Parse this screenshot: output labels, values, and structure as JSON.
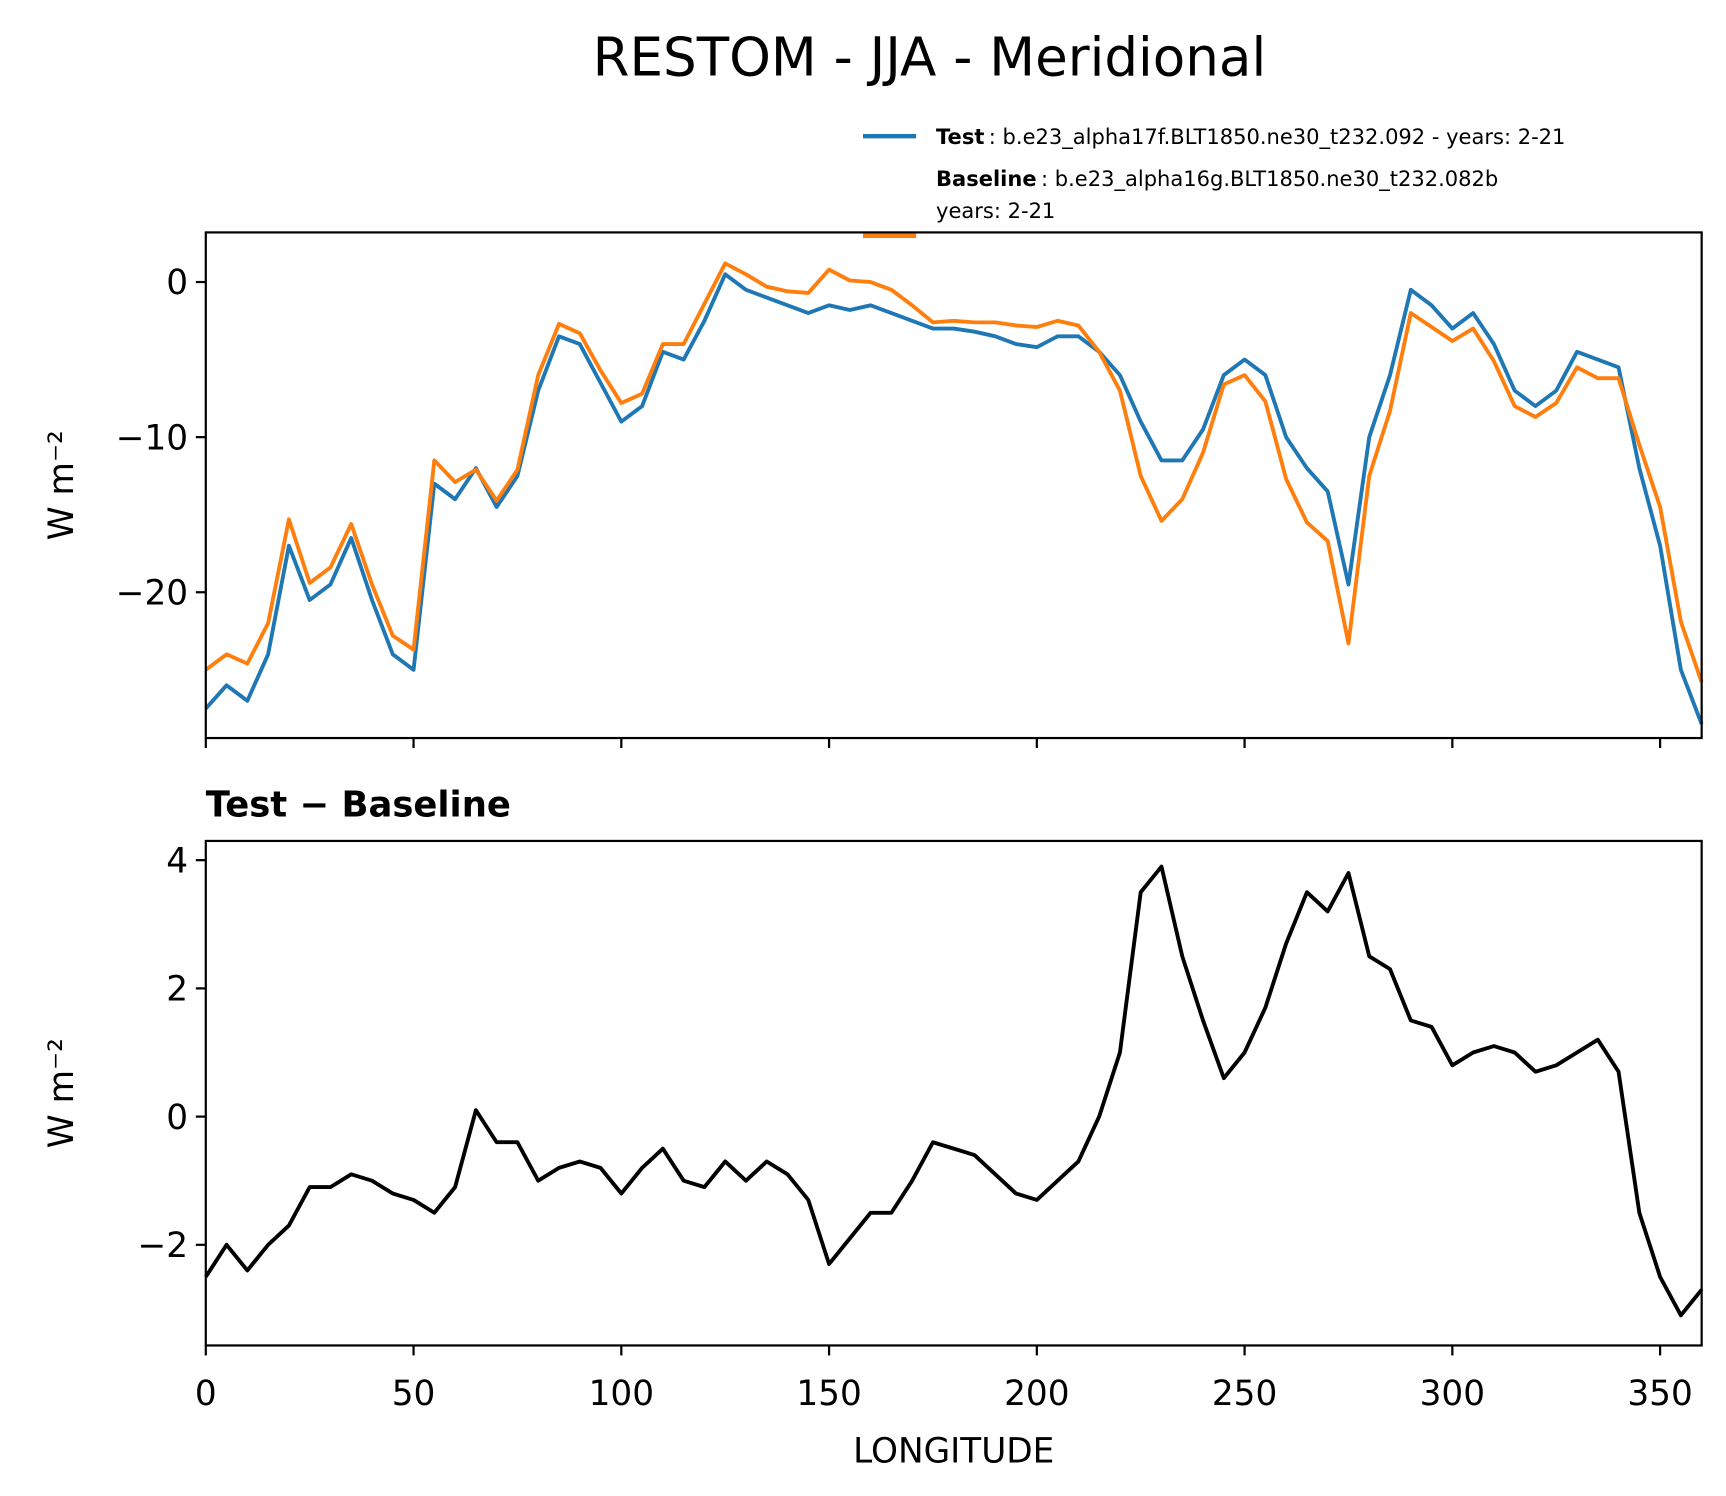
{
  "chart_data": [
    {
      "type": "line",
      "title": "RESTOM - JJA - Meridional",
      "ylabel": "W m⁻²",
      "x": [
        0,
        5,
        10,
        15,
        20,
        25,
        30,
        35,
        40,
        45,
        50,
        55,
        60,
        65,
        70,
        75,
        80,
        85,
        90,
        95,
        100,
        105,
        110,
        115,
        120,
        125,
        130,
        135,
        140,
        145,
        150,
        155,
        160,
        165,
        170,
        175,
        180,
        185,
        190,
        195,
        200,
        205,
        210,
        215,
        220,
        225,
        230,
        235,
        240,
        245,
        250,
        255,
        260,
        265,
        270,
        275,
        280,
        285,
        290,
        295,
        300,
        305,
        310,
        315,
        320,
        325,
        330,
        335,
        340,
        345,
        350,
        355,
        360
      ],
      "xlim": [
        0,
        360
      ],
      "xticks": [
        0,
        50,
        100,
        150,
        200,
        250,
        300,
        350
      ],
      "ylim": [
        -29.4,
        3.2
      ],
      "yticks": [
        {
          "value": 0,
          "label": "0"
        },
        {
          "value": -10,
          "label": "−10"
        },
        {
          "value": -20,
          "label": "−20"
        }
      ],
      "series": [
        {
          "name": "Test",
          "description": [
            ": b.e23_alpha17f.BLT1850.ne30_t232.092 - years: 2-21"
          ],
          "color": "#1f77b4",
          "values": [
            -27.5,
            -26,
            -27,
            -24,
            -17,
            -20.5,
            -19.5,
            -16.5,
            -20.5,
            -24,
            -25,
            -13,
            -14,
            -12,
            -14.5,
            -12.5,
            -7,
            -3.5,
            -4,
            -6.5,
            -9,
            -8,
            -4.5,
            -5,
            -2.5,
            0.5,
            -0.5,
            -1,
            -1.5,
            -2,
            -1.5,
            -1.8,
            -1.5,
            -2,
            -2.5,
            -3,
            -3,
            -3.2,
            -3.5,
            -4,
            -4.2,
            -3.5,
            -3.5,
            -4.5,
            -6,
            -9,
            -11.5,
            -11.5,
            -9.5,
            -6,
            -5,
            -6,
            -10,
            -12,
            -13.5,
            -19.5,
            -10,
            -6,
            -0.5,
            -1.5,
            -3,
            -2,
            -4,
            -7,
            -8,
            -7,
            -4.5,
            -5,
            -5.5,
            -12,
            -17,
            -25,
            -28.5
          ]
        },
        {
          "name": "Baseline",
          "description": [
            ": b.e23_alpha16g.BLT1850.ne30_t232.082b",
            "years: 2-21"
          ],
          "color": "#ff7f0e",
          "values": [
            -25,
            -24,
            -24.6,
            -22,
            -15.3,
            -19.4,
            -18.4,
            -15.6,
            -19.5,
            -22.8,
            -23.7,
            -11.5,
            -12.9,
            -12.1,
            -14.1,
            -12.1,
            -6,
            -2.7,
            -3.3,
            -5.7,
            -7.8,
            -7.2,
            -4,
            -4,
            -1.4,
            1.2,
            0.5,
            -0.3,
            -0.6,
            -0.7,
            0.8,
            0.1,
            0,
            -0.5,
            -1.5,
            -2.6,
            -2.5,
            -2.6,
            -2.6,
            -2.8,
            -2.9,
            -2.5,
            -2.8,
            -4.5,
            -7,
            -12.5,
            -15.4,
            -14,
            -11,
            -6.6,
            -6,
            -7.7,
            -12.7,
            -15.5,
            -16.7,
            -23.3,
            -12.5,
            -8.3,
            -2,
            -2.9,
            -3.8,
            -3,
            -5.1,
            -8,
            -8.7,
            -7.8,
            -5.5,
            -6.2,
            -6.2,
            -10.5,
            -14.5,
            -21.9,
            -25.8
          ]
        }
      ]
    },
    {
      "type": "line",
      "title": "Test − Baseline",
      "ylabel": "W m⁻²",
      "xlabel": "LONGITUDE",
      "x": [
        0,
        5,
        10,
        15,
        20,
        25,
        30,
        35,
        40,
        45,
        50,
        55,
        60,
        65,
        70,
        75,
        80,
        85,
        90,
        95,
        100,
        105,
        110,
        115,
        120,
        125,
        130,
        135,
        140,
        145,
        150,
        155,
        160,
        165,
        170,
        175,
        180,
        185,
        190,
        195,
        200,
        205,
        210,
        215,
        220,
        225,
        230,
        235,
        240,
        245,
        250,
        255,
        260,
        265,
        270,
        275,
        280,
        285,
        290,
        295,
        300,
        305,
        310,
        315,
        320,
        325,
        330,
        335,
        340,
        345,
        350,
        355,
        360
      ],
      "xlim": [
        0,
        360
      ],
      "xticks": [
        0,
        50,
        100,
        150,
        200,
        250,
        300,
        350
      ],
      "ylim": [
        -3.57,
        4.3
      ],
      "yticks": [
        {
          "value": -2,
          "label": "−2"
        },
        0,
        2,
        4
      ],
      "series": [
        {
          "color": "#000000",
          "values": [
            -2.5,
            -2,
            -2.4,
            -2,
            -1.7,
            -1.1,
            -1.1,
            -0.9,
            -1,
            -1.2,
            -1.3,
            -1.5,
            -1.1,
            0.1,
            -0.4,
            -0.4,
            -1,
            -0.8,
            -0.7,
            -0.8,
            -1.2,
            -0.8,
            -0.5,
            -1,
            -1.1,
            -0.7,
            -1,
            -0.7,
            -0.9,
            -1.3,
            -2.3,
            -1.9,
            -1.5,
            -1.5,
            -1,
            -0.4,
            -0.5,
            -0.6,
            -0.9,
            -1.2,
            -1.3,
            -1,
            -0.7,
            0,
            1,
            3.5,
            3.9,
            2.5,
            1.5,
            0.6,
            1,
            1.7,
            2.7,
            3.5,
            3.2,
            3.8,
            2.5,
            2.3,
            1.5,
            1.4,
            0.8,
            1,
            1.1,
            1,
            0.7,
            0.8,
            1,
            1.2,
            0.7,
            -1.5,
            -2.5,
            -3.1,
            -2.7
          ]
        }
      ]
    }
  ]
}
